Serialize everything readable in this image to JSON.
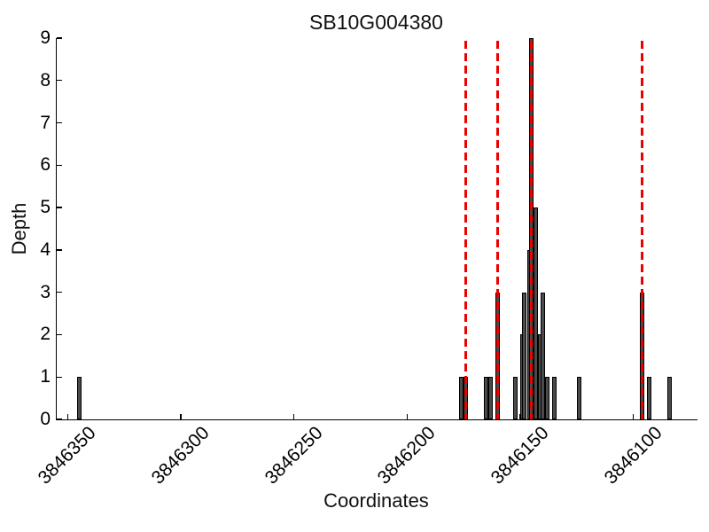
{
  "chart_data": {
    "type": "bar",
    "title": "SB10G004380",
    "xlabel": "Coordinates",
    "ylabel": "Depth",
    "x_axis_reversed": true,
    "x_range": [
      3846355,
      3846072
    ],
    "ylim": [
      0,
      9
    ],
    "y_ticks": [
      0,
      1,
      2,
      3,
      4,
      5,
      6,
      7,
      8,
      9
    ],
    "x_ticks": [
      3846350,
      3846300,
      3846250,
      3846200,
      3846150,
      3846100
    ],
    "x_tick_rotation_deg": 45,
    "grid": false,
    "legend": null,
    "bars": [
      {
        "coordinate": 3846345,
        "depth": 1
      },
      {
        "coordinate": 3846176,
        "depth": 1
      },
      {
        "coordinate": 3846174,
        "depth": 1
      },
      {
        "coordinate": 3846165,
        "depth": 1
      },
      {
        "coordinate": 3846163,
        "depth": 1
      },
      {
        "coordinate": 3846160,
        "depth": 3
      },
      {
        "coordinate": 3846152,
        "depth": 1
      },
      {
        "coordinate": 3846149,
        "depth": 2
      },
      {
        "coordinate": 3846148,
        "depth": 3
      },
      {
        "coordinate": 3846146,
        "depth": 4
      },
      {
        "coordinate": 3846145,
        "depth": 9
      },
      {
        "coordinate": 3846143,
        "depth": 5
      },
      {
        "coordinate": 3846141,
        "depth": 2
      },
      {
        "coordinate": 3846140,
        "depth": 3
      },
      {
        "coordinate": 3846138,
        "depth": 1
      },
      {
        "coordinate": 3846135,
        "depth": 1
      },
      {
        "coordinate": 3846124,
        "depth": 1
      },
      {
        "coordinate": 3846096,
        "depth": 3
      },
      {
        "coordinate": 3846093,
        "depth": 1
      },
      {
        "coordinate": 3846084,
        "depth": 1
      }
    ],
    "red_dashed_line_coordinates": [
      3846174,
      3846160,
      3846145,
      3846096
    ],
    "colors": {
      "bar_fill": "#4b4b4b",
      "bar_edge": "#000000",
      "red_line": "#ee0000",
      "axis": "#000000",
      "background": "#ffffff"
    }
  }
}
